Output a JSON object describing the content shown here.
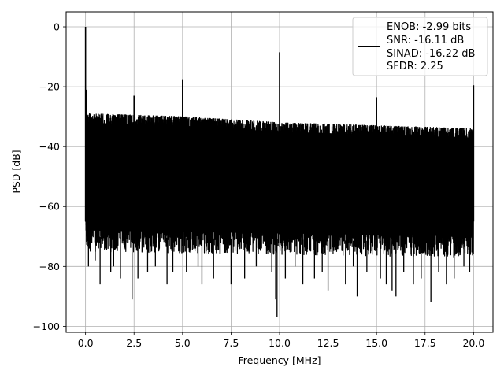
{
  "chart_data": {
    "type": "line",
    "title": "",
    "xlabel": "Frequency [MHz]",
    "ylabel": "PSD [dB]",
    "xlim": [
      -1.0,
      21.0
    ],
    "ylim": [
      -102.0,
      5.0
    ],
    "xticks": [
      0.0,
      2.5,
      5.0,
      7.5,
      10.0,
      12.5,
      15.0,
      17.5,
      20.0
    ],
    "xtick_labels": [
      "0.0",
      "2.5",
      "5.0",
      "7.5",
      "10.0",
      "12.5",
      "15.0",
      "17.5",
      "20.0"
    ],
    "yticks": [
      0,
      -20,
      -40,
      -60,
      -80,
      -100
    ],
    "ytick_labels": [
      "0",
      "−20",
      "−40",
      "−60",
      "−80",
      "−100"
    ],
    "grid": true,
    "legend_position": "top-right",
    "legend_lines": [
      "ENOB: -2.99 bits",
      "SNR: -16.11 dB",
      "SINAD: -16.22 dB",
      "SFDR: 2.25"
    ],
    "series": [
      {
        "color": "#000000",
        "noise_top_db": [
          [
            0.0,
            -29
          ],
          [
            5.0,
            -30
          ],
          [
            10.0,
            -32
          ],
          [
            15.0,
            -33
          ],
          [
            20.0,
            -34
          ]
        ],
        "noise_floor_db": [
          [
            0.0,
            -72
          ],
          [
            20.0,
            -74
          ]
        ],
        "deep_dips": [
          [
            0.15,
            -80
          ],
          [
            0.5,
            -78
          ],
          [
            0.75,
            -86
          ],
          [
            1.3,
            -82
          ],
          [
            1.45,
            -80
          ],
          [
            1.8,
            -84
          ],
          [
            2.4,
            -91
          ],
          [
            2.7,
            -84
          ],
          [
            3.2,
            -82
          ],
          [
            3.6,
            -80
          ],
          [
            4.2,
            -86
          ],
          [
            4.5,
            -82
          ],
          [
            5.2,
            -82
          ],
          [
            5.8,
            -80
          ],
          [
            6.0,
            -86
          ],
          [
            6.6,
            -84
          ],
          [
            7.5,
            -86
          ],
          [
            8.2,
            -84
          ],
          [
            8.8,
            -80
          ],
          [
            9.6,
            -82
          ],
          [
            9.8,
            -91
          ],
          [
            9.87,
            -97
          ],
          [
            10.3,
            -84
          ],
          [
            10.8,
            -80
          ],
          [
            11.2,
            -86
          ],
          [
            11.8,
            -84
          ],
          [
            12.2,
            -82
          ],
          [
            12.5,
            -88
          ],
          [
            13.4,
            -86
          ],
          [
            13.8,
            -80
          ],
          [
            14.0,
            -90
          ],
          [
            14.5,
            -82
          ],
          [
            15.2,
            -84
          ],
          [
            15.5,
            -86
          ],
          [
            15.8,
            -88
          ],
          [
            16.0,
            -90
          ],
          [
            16.4,
            -82
          ],
          [
            16.9,
            -86
          ],
          [
            17.3,
            -84
          ],
          [
            17.8,
            -92
          ],
          [
            18.2,
            -82
          ],
          [
            18.6,
            -86
          ],
          [
            19.0,
            -84
          ],
          [
            19.5,
            -80
          ],
          [
            19.8,
            -82
          ]
        ],
        "spikes": [
          [
            0.0,
            0
          ],
          [
            0.05,
            -21
          ],
          [
            2.5,
            -23
          ],
          [
            5.0,
            -17.5
          ],
          [
            10.0,
            -8.5
          ],
          [
            15.0,
            -23.5
          ],
          [
            20.0,
            -19.5
          ]
        ],
        "spike_bases": [
          [
            0.0,
            -65
          ],
          [
            0.05,
            -70
          ],
          [
            2.5,
            -55
          ],
          [
            5.0,
            -55
          ],
          [
            10.0,
            -52
          ],
          [
            15.0,
            -55
          ],
          [
            20.0,
            -65
          ]
        ]
      }
    ]
  }
}
